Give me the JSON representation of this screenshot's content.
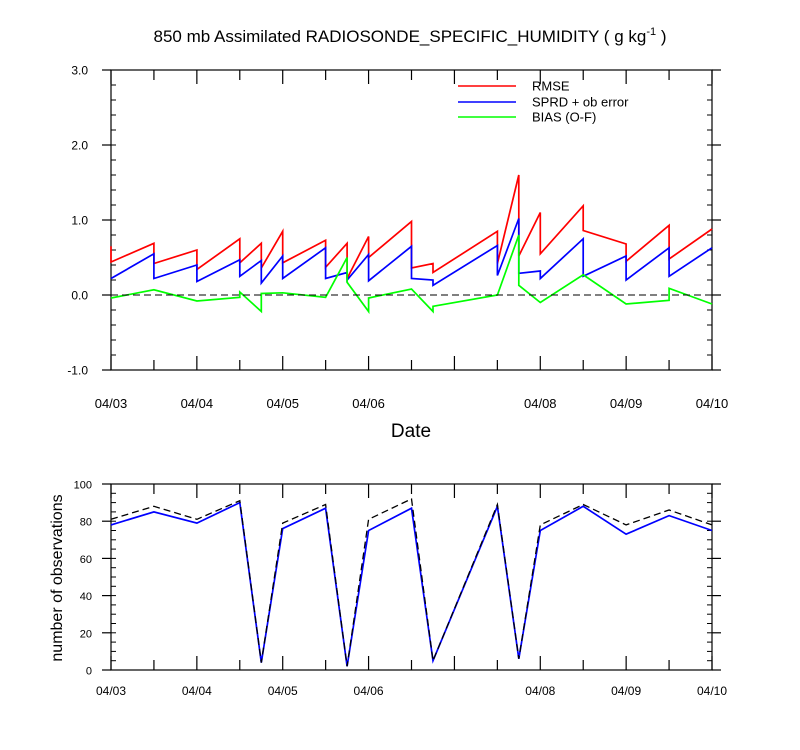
{
  "title": {
    "main": "850 mb Assimilated RADIOSONDE_SPECIFIC_HUMIDITY ( g kg",
    "sup": "-1",
    "tail": " )"
  },
  "colors": {
    "rmse": "#ff0000",
    "sprd": "#0000ff",
    "bias": "#00ff00",
    "zero": "#000000",
    "obs_assim": "#0000ff",
    "obs_poss": "#000000"
  },
  "chart_data": [
    {
      "type": "line",
      "xlabel": "Date",
      "ylabel": "",
      "xlim": [
        0,
        7
      ],
      "ylim": [
        -1.0,
        3.0
      ],
      "x_tick_labels": [
        "04/03",
        "04/04",
        "04/05",
        "04/06",
        "04/08",
        "04/09",
        "04/10"
      ],
      "x_tick_values": [
        0,
        1,
        2,
        3,
        5,
        6,
        7
      ],
      "y_tick_labels": [
        "-1.0",
        "0.0",
        "1.0",
        "2.0",
        "3.0"
      ],
      "y_tick_values": [
        -1,
        0,
        1,
        2,
        3
      ],
      "legend": [
        "RMSE",
        "SPRD + ob error",
        "BIAS (O-F)"
      ],
      "legend_position": "top-right",
      "series": [
        {
          "name": "RMSE",
          "key": "rmse",
          "points": [
            [
              0,
              0.65
            ],
            [
              0,
              0.44
            ],
            [
              0.5,
              0.69
            ],
            [
              0.5,
              0.42
            ],
            [
              1,
              0.6
            ],
            [
              1,
              0.34
            ],
            [
              1.5,
              0.75
            ],
            [
              1.5,
              0.43
            ],
            [
              1.75,
              0.69
            ],
            [
              1.75,
              0.36
            ],
            [
              2,
              0.85
            ],
            [
              2,
              0.43
            ],
            [
              2.5,
              0.73
            ],
            [
              2.5,
              0.37
            ],
            [
              2.75,
              0.69
            ],
            [
              2.75,
              0.22
            ],
            [
              3,
              0.78
            ],
            [
              3,
              0.5
            ],
            [
              3.5,
              0.98
            ],
            [
              3.5,
              0.36
            ],
            [
              3.75,
              0.42
            ],
            [
              3.75,
              0.3
            ],
            [
              4.5,
              0.85
            ],
            [
              4.5,
              0.42
            ],
            [
              4.75,
              1.6
            ],
            [
              4.75,
              0.52
            ],
            [
              5,
              1.1
            ],
            [
              5,
              0.55
            ],
            [
              5.5,
              1.19
            ],
            [
              5.5,
              0.86
            ],
            [
              6,
              0.68
            ],
            [
              6,
              0.45
            ],
            [
              6.5,
              0.93
            ],
            [
              6.5,
              0.48
            ],
            [
              7,
              0.88
            ]
          ]
        },
        {
          "name": "SPRD + ob error",
          "key": "sprd",
          "points": [
            [
              0,
              0.22
            ],
            [
              0.5,
              0.55
            ],
            [
              0.5,
              0.22
            ],
            [
              1,
              0.4
            ],
            [
              1,
              0.18
            ],
            [
              1.5,
              0.47
            ],
            [
              1.5,
              0.25
            ],
            [
              1.75,
              0.46
            ],
            [
              1.75,
              0.16
            ],
            [
              2,
              0.52
            ],
            [
              2,
              0.22
            ],
            [
              2.5,
              0.63
            ],
            [
              2.5,
              0.22
            ],
            [
              2.75,
              0.3
            ],
            [
              2.75,
              0.2
            ],
            [
              3,
              0.54
            ],
            [
              3,
              0.19
            ],
            [
              3.5,
              0.65
            ],
            [
              3.5,
              0.22
            ],
            [
              3.75,
              0.2
            ],
            [
              3.75,
              0.13
            ],
            [
              4.5,
              0.66
            ],
            [
              4.5,
              0.26
            ],
            [
              4.75,
              1.02
            ],
            [
              4.75,
              0.29
            ],
            [
              5,
              0.32
            ],
            [
              5,
              0.22
            ],
            [
              5.5,
              0.75
            ],
            [
              5.5,
              0.25
            ],
            [
              6,
              0.52
            ],
            [
              6,
              0.2
            ],
            [
              6.5,
              0.63
            ],
            [
              6.5,
              0.25
            ],
            [
              7,
              0.63
            ]
          ]
        },
        {
          "name": "BIAS (O-F)",
          "key": "bias",
          "points": [
            [
              0,
              -0.04
            ],
            [
              0.5,
              0.07
            ],
            [
              1,
              -0.08
            ],
            [
              1.5,
              -0.03
            ],
            [
              1.5,
              0.04
            ],
            [
              1.75,
              -0.22
            ],
            [
              1.75,
              0.02
            ],
            [
              2,
              0.03
            ],
            [
              2.5,
              -0.03
            ],
            [
              2.75,
              0.5
            ],
            [
              2.75,
              0.17
            ],
            [
              3,
              -0.22
            ],
            [
              3,
              -0.04
            ],
            [
              3.5,
              0.08
            ],
            [
              3.75,
              -0.22
            ],
            [
              3.75,
              -0.15
            ],
            [
              4.5,
              0.0
            ],
            [
              4.75,
              0.8
            ],
            [
              4.75,
              0.13
            ],
            [
              5,
              -0.1
            ],
            [
              5.5,
              0.27
            ],
            [
              6,
              -0.12
            ],
            [
              6.5,
              -0.07
            ],
            [
              6.5,
              0.09
            ],
            [
              7,
              -0.12
            ]
          ]
        },
        {
          "name": "zero line",
          "key": "zero",
          "points": [
            [
              0,
              0
            ],
            [
              7,
              0
            ]
          ]
        }
      ]
    },
    {
      "type": "line",
      "xlabel": "",
      "ylabel": "number of observations",
      "xlim": [
        0,
        7
      ],
      "ylim": [
        0,
        100
      ],
      "x_tick_labels": [
        "04/03",
        "04/04",
        "04/05",
        "04/06",
        "04/08",
        "04/09",
        "04/10"
      ],
      "x_tick_values": [
        0,
        1,
        2,
        3,
        5,
        6,
        7
      ],
      "y_tick_labels": [
        "0",
        "20",
        "40",
        "60",
        "80",
        "100"
      ],
      "y_tick_values": [
        0,
        20,
        40,
        60,
        80,
        100
      ],
      "series": [
        {
          "name": "assimilated",
          "key": "obs_assim",
          "points": [
            [
              0,
              78
            ],
            [
              0.5,
              85
            ],
            [
              1,
              79
            ],
            [
              1.5,
              90
            ],
            [
              1.75,
              4
            ],
            [
              2,
              76
            ],
            [
              2.5,
              87
            ],
            [
              2.75,
              2
            ],
            [
              3,
              75
            ],
            [
              3.5,
              87
            ],
            [
              3.75,
              5
            ],
            [
              4.5,
              88
            ],
            [
              4.75,
              6
            ],
            [
              5,
              75
            ],
            [
              5.5,
              88
            ],
            [
              6,
              73
            ],
            [
              6.5,
              83
            ],
            [
              7,
              75
            ]
          ]
        },
        {
          "name": "possible",
          "key": "obs_poss",
          "points": [
            [
              0,
              81
            ],
            [
              0.5,
              88
            ],
            [
              1,
              81
            ],
            [
              1.5,
              91
            ],
            [
              1.75,
              4
            ],
            [
              2,
              79
            ],
            [
              2.5,
              89
            ],
            [
              2.75,
              2
            ],
            [
              3,
              81
            ],
            [
              3.5,
              92
            ],
            [
              3.75,
              5
            ],
            [
              4.5,
              89
            ],
            [
              4.75,
              6
            ],
            [
              5,
              78
            ],
            [
              5.5,
              89
            ],
            [
              6,
              78
            ],
            [
              6.5,
              86
            ],
            [
              7,
              78
            ]
          ]
        }
      ]
    }
  ]
}
